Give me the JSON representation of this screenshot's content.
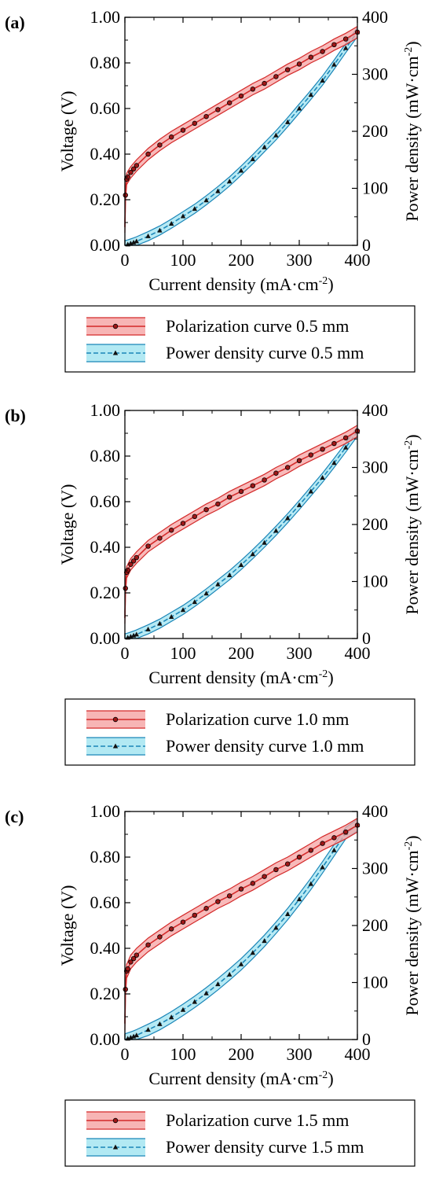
{
  "chart_data": [
    {
      "panel_label": "(a)",
      "type": "line",
      "xlabel": "Current density (mA·cm⁻²)",
      "ylabel": "Voltage (V)",
      "y2label": "Power density (mW·cm⁻²)",
      "xlim": [
        0,
        400
      ],
      "ylim": [
        0,
        1.0
      ],
      "y2lim": [
        0,
        400
      ],
      "x_ticks": [
        "0",
        "100",
        "200",
        "300",
        "400"
      ],
      "y_ticks": [
        "0.00",
        "0.20",
        "0.40",
        "0.60",
        "0.80",
        "1.00"
      ],
      "y2_ticks": [
        "0",
        "100",
        "200",
        "300",
        "400"
      ],
      "legend": [
        "Polarization curve 0.5 mm",
        "Power density curve 0.5 mm"
      ],
      "colors": {
        "polarization": "#d42a2a",
        "polarization_band": "#f5a3a3",
        "power": "#1b86b8",
        "power_band": "#9fe3f0"
      },
      "series": [
        {
          "name": "Polarization curve 0.5 mm",
          "axis": "left",
          "x": [
            0,
            1,
            3,
            5,
            10,
            15,
            20,
            40,
            60,
            80,
            100,
            120,
            140,
            160,
            180,
            200,
            220,
            240,
            260,
            280,
            300,
            320,
            340,
            360,
            380,
            400
          ],
          "values": [
            0.08,
            0.22,
            0.29,
            0.3,
            0.32,
            0.335,
            0.35,
            0.4,
            0.44,
            0.475,
            0.505,
            0.535,
            0.565,
            0.595,
            0.625,
            0.655,
            0.685,
            0.71,
            0.74,
            0.77,
            0.795,
            0.825,
            0.85,
            0.88,
            0.905,
            0.935
          ],
          "band": 0.025
        },
        {
          "name": "Power density curve 0.5 mm",
          "axis": "right",
          "x": [
            0,
            5,
            10,
            15,
            20,
            40,
            60,
            80,
            100,
            120,
            140,
            160,
            180,
            200,
            220,
            240,
            260,
            280,
            300,
            320,
            340,
            360,
            380,
            400
          ],
          "values": [
            0,
            1.5,
            3.2,
            5,
            7,
            16,
            26,
            38,
            51,
            64,
            79,
            95,
            112,
            131,
            151,
            172,
            193,
            216,
            240,
            264,
            289,
            317,
            346,
            374
          ],
          "band": 8
        }
      ]
    },
    {
      "panel_label": "(b)",
      "type": "line",
      "xlabel": "Current density (mA·cm⁻²)",
      "ylabel": "Voltage (V)",
      "y2label": "Power density (mW·cm⁻²)",
      "xlim": [
        0,
        400
      ],
      "ylim": [
        0,
        1.0
      ],
      "y2lim": [
        0,
        400
      ],
      "x_ticks": [
        "0",
        "100",
        "200",
        "300",
        "400"
      ],
      "y_ticks": [
        "0.00",
        "0.20",
        "0.40",
        "0.60",
        "0.80",
        "1.00"
      ],
      "y2_ticks": [
        "0",
        "100",
        "200",
        "300",
        "400"
      ],
      "legend": [
        "Polarization curve 1.0 mm",
        "Power density curve 1.0 mm"
      ],
      "colors": {
        "polarization": "#d42a2a",
        "polarization_band": "#f5a3a3",
        "power": "#1b86b8",
        "power_band": "#9fe3f0"
      },
      "series": [
        {
          "name": "Polarization curve 1.0 mm",
          "axis": "left",
          "x": [
            0,
            1,
            3,
            5,
            10,
            15,
            20,
            40,
            60,
            80,
            100,
            120,
            140,
            160,
            180,
            200,
            220,
            240,
            260,
            280,
            300,
            320,
            340,
            360,
            380,
            400
          ],
          "values": [
            0.09,
            0.22,
            0.29,
            0.3,
            0.325,
            0.34,
            0.355,
            0.405,
            0.44,
            0.475,
            0.505,
            0.535,
            0.565,
            0.59,
            0.62,
            0.645,
            0.67,
            0.695,
            0.725,
            0.75,
            0.78,
            0.805,
            0.83,
            0.855,
            0.88,
            0.91
          ],
          "band": 0.025
        },
        {
          "name": "Power density curve 1.0 mm",
          "axis": "right",
          "x": [
            0,
            5,
            10,
            15,
            20,
            40,
            60,
            80,
            100,
            120,
            140,
            160,
            180,
            200,
            220,
            240,
            260,
            280,
            300,
            320,
            340,
            360,
            380,
            400
          ],
          "values": [
            0,
            1.5,
            3.3,
            5.1,
            7.1,
            16,
            26,
            38,
            50,
            64,
            79,
            95,
            111,
            129,
            148,
            168,
            189,
            211,
            234,
            258,
            282,
            308,
            335,
            363
          ],
          "band": 8
        }
      ]
    },
    {
      "panel_label": "(c)",
      "type": "line",
      "xlabel": "Current density (mA·cm⁻²)",
      "ylabel": "Voltage (V)",
      "y2label": "Power density (mW·cm⁻²)",
      "xlim": [
        0,
        400
      ],
      "ylim": [
        0,
        1.0
      ],
      "y2lim": [
        0,
        400
      ],
      "x_ticks": [
        "0",
        "100",
        "200",
        "300",
        "400"
      ],
      "y_ticks": [
        "0.00",
        "0.20",
        "0.40",
        "0.60",
        "0.80",
        "1.00"
      ],
      "y2_ticks": [
        "0",
        "100",
        "200",
        "300",
        "400"
      ],
      "legend": [
        "Polarization curve 1.5 mm",
        "Power density curve 1.5 mm"
      ],
      "colors": {
        "polarization": "#d42a2a",
        "polarization_band": "#f5a3a3",
        "power": "#1b86b8",
        "power_band": "#9fe3f0"
      },
      "series": [
        {
          "name": "Polarization curve 1.5 mm",
          "axis": "left",
          "x": [
            0,
            1,
            3,
            5,
            10,
            15,
            20,
            40,
            60,
            80,
            100,
            120,
            140,
            160,
            180,
            200,
            220,
            240,
            260,
            280,
            300,
            320,
            340,
            360,
            380,
            400
          ],
          "values": [
            0.07,
            0.22,
            0.3,
            0.31,
            0.34,
            0.355,
            0.37,
            0.415,
            0.45,
            0.485,
            0.515,
            0.545,
            0.575,
            0.605,
            0.63,
            0.66,
            0.685,
            0.715,
            0.745,
            0.77,
            0.8,
            0.83,
            0.86,
            0.885,
            0.91,
            0.94
          ],
          "band": 0.03
        },
        {
          "name": "Power density curve 1.5 mm",
          "axis": "right",
          "x": [
            0,
            5,
            10,
            15,
            20,
            40,
            60,
            80,
            100,
            120,
            140,
            160,
            180,
            200,
            220,
            240,
            260,
            280,
            300,
            320,
            340,
            360,
            380,
            400
          ],
          "values": [
            0,
            1.6,
            3.4,
            5.3,
            7.4,
            17,
            27,
            39,
            52,
            66,
            81,
            97,
            114,
            132,
            152,
            173,
            196,
            220,
            246,
            273,
            302,
            332,
            362,
            376
          ],
          "band": 10
        }
      ]
    }
  ]
}
